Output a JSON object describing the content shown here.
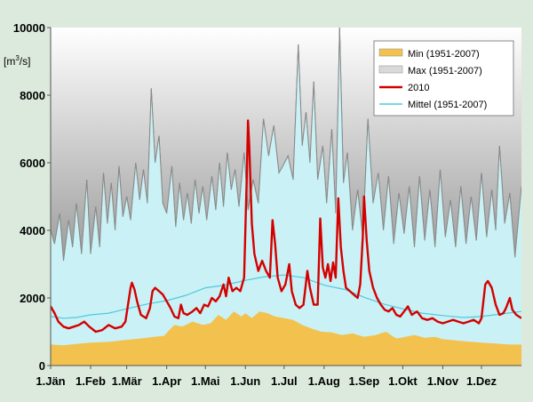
{
  "chart_data": {
    "type": "area",
    "ylabel_main": "[m",
    "ylabel_sup": "3",
    "ylabel_tail": "/s]",
    "ylim": [
      0,
      10000
    ],
    "yticks": [
      0,
      2000,
      4000,
      6000,
      8000,
      10000
    ],
    "xlim": [
      0,
      365
    ],
    "grid": false,
    "legend_position": "top-right",
    "months": [
      {
        "label": "1.Jän",
        "day": 0
      },
      {
        "label": "1.Feb",
        "day": 31
      },
      {
        "label": "1.Mär",
        "day": 59
      },
      {
        "label": "1.Apr",
        "day": 90
      },
      {
        "label": "1.Mai",
        "day": 120
      },
      {
        "label": "1.Jun",
        "day": 151
      },
      {
        "label": "1.Jul",
        "day": 181
      },
      {
        "label": "1.Aug",
        "day": 212
      },
      {
        "label": "1.Sep",
        "day": 243
      },
      {
        "label": "1.Okt",
        "day": 273
      },
      {
        "label": "1.Nov",
        "day": 304
      },
      {
        "label": "1.Dez",
        "day": 334
      }
    ],
    "series": [
      {
        "name": "Max (1951-2007)",
        "kind": "area",
        "color": "#d9d9d9",
        "points": [
          [
            0,
            4000
          ],
          [
            3,
            3600
          ],
          [
            7,
            4500
          ],
          [
            10,
            3100
          ],
          [
            14,
            4300
          ],
          [
            17,
            3500
          ],
          [
            20,
            4800
          ],
          [
            24,
            3300
          ],
          [
            28,
            5500
          ],
          [
            31,
            3300
          ],
          [
            35,
            4700
          ],
          [
            38,
            3500
          ],
          [
            41,
            5700
          ],
          [
            44,
            4200
          ],
          [
            47,
            5400
          ],
          [
            50,
            4000
          ],
          [
            53,
            5900
          ],
          [
            56,
            4400
          ],
          [
            59,
            5000
          ],
          [
            62,
            4300
          ],
          [
            66,
            6000
          ],
          [
            69,
            4900
          ],
          [
            72,
            5800
          ],
          [
            75,
            4800
          ],
          [
            78,
            8200
          ],
          [
            81,
            6000
          ],
          [
            84,
            6800
          ],
          [
            87,
            4800
          ],
          [
            90,
            4500
          ],
          [
            94,
            5900
          ],
          [
            97,
            4100
          ],
          [
            100,
            5400
          ],
          [
            103,
            4300
          ],
          [
            106,
            5100
          ],
          [
            109,
            4200
          ],
          [
            112,
            5500
          ],
          [
            115,
            4500
          ],
          [
            118,
            5300
          ],
          [
            121,
            4300
          ],
          [
            125,
            5600
          ],
          [
            128,
            4600
          ],
          [
            131,
            6000
          ],
          [
            134,
            4700
          ],
          [
            137,
            6300
          ],
          [
            140,
            5200
          ],
          [
            143,
            5800
          ],
          [
            146,
            4700
          ],
          [
            150,
            6300
          ],
          [
            153,
            4600
          ],
          [
            157,
            5500
          ],
          [
            161,
            4800
          ],
          [
            165,
            7300
          ],
          [
            169,
            6200
          ],
          [
            173,
            7100
          ],
          [
            177,
            5700
          ],
          [
            180,
            5900
          ],
          [
            184,
            6200
          ],
          [
            188,
            5500
          ],
          [
            192,
            9500
          ],
          [
            195,
            6500
          ],
          [
            198,
            7500
          ],
          [
            201,
            6000
          ],
          [
            204,
            8400
          ],
          [
            207,
            5500
          ],
          [
            211,
            6500
          ],
          [
            214,
            4800
          ],
          [
            218,
            7000
          ],
          [
            221,
            4500
          ],
          [
            224,
            10000
          ],
          [
            227,
            5400
          ],
          [
            230,
            6300
          ],
          [
            234,
            4000
          ],
          [
            238,
            5200
          ],
          [
            242,
            3800
          ],
          [
            246,
            7300
          ],
          [
            250,
            4800
          ],
          [
            254,
            5700
          ],
          [
            258,
            4000
          ],
          [
            262,
            5600
          ],
          [
            266,
            3600
          ],
          [
            270,
            5100
          ],
          [
            274,
            3900
          ],
          [
            278,
            5300
          ],
          [
            282,
            3500
          ],
          [
            286,
            5600
          ],
          [
            290,
            3700
          ],
          [
            294,
            5200
          ],
          [
            298,
            3500
          ],
          [
            302,
            5800
          ],
          [
            306,
            3800
          ],
          [
            310,
            4900
          ],
          [
            314,
            3500
          ],
          [
            318,
            5300
          ],
          [
            322,
            3600
          ],
          [
            326,
            5000
          ],
          [
            330,
            3700
          ],
          [
            334,
            5700
          ],
          [
            338,
            3800
          ],
          [
            342,
            5200
          ],
          [
            345,
            4000
          ],
          [
            348,
            6500
          ],
          [
            352,
            4200
          ],
          [
            356,
            5100
          ],
          [
            360,
            3200
          ],
          [
            365,
            5300
          ]
        ]
      },
      {
        "name": "Mittel (1951-2007)",
        "kind": "line",
        "color": "#4fc9df",
        "points": [
          [
            0,
            1450
          ],
          [
            10,
            1400
          ],
          [
            20,
            1420
          ],
          [
            31,
            1500
          ],
          [
            45,
            1550
          ],
          [
            59,
            1680
          ],
          [
            75,
            1820
          ],
          [
            90,
            1920
          ],
          [
            105,
            2080
          ],
          [
            120,
            2300
          ],
          [
            135,
            2380
          ],
          [
            151,
            2520
          ],
          [
            165,
            2620
          ],
          [
            181,
            2680
          ],
          [
            196,
            2600
          ],
          [
            212,
            2380
          ],
          [
            228,
            2250
          ],
          [
            243,
            2020
          ],
          [
            258,
            1820
          ],
          [
            273,
            1680
          ],
          [
            288,
            1550
          ],
          [
            304,
            1480
          ],
          [
            320,
            1420
          ],
          [
            334,
            1450
          ],
          [
            350,
            1530
          ],
          [
            365,
            1600
          ]
        ]
      },
      {
        "name": "Min (1951-2007)",
        "kind": "area",
        "color": "#f2c14e",
        "points": [
          [
            0,
            620
          ],
          [
            10,
            600
          ],
          [
            20,
            640
          ],
          [
            31,
            680
          ],
          [
            45,
            700
          ],
          [
            59,
            760
          ],
          [
            70,
            800
          ],
          [
            80,
            850
          ],
          [
            88,
            880
          ],
          [
            92,
            1050
          ],
          [
            96,
            1200
          ],
          [
            102,
            1150
          ],
          [
            110,
            1300
          ],
          [
            118,
            1200
          ],
          [
            124,
            1250
          ],
          [
            130,
            1500
          ],
          [
            136,
            1350
          ],
          [
            142,
            1600
          ],
          [
            148,
            1450
          ],
          [
            151,
            1550
          ],
          [
            156,
            1400
          ],
          [
            162,
            1600
          ],
          [
            168,
            1550
          ],
          [
            174,
            1450
          ],
          [
            181,
            1400
          ],
          [
            188,
            1350
          ],
          [
            195,
            1200
          ],
          [
            202,
            1100
          ],
          [
            210,
            1000
          ],
          [
            218,
            980
          ],
          [
            226,
            900
          ],
          [
            234,
            950
          ],
          [
            243,
            850
          ],
          [
            252,
            900
          ],
          [
            260,
            1000
          ],
          [
            268,
            800
          ],
          [
            275,
            850
          ],
          [
            282,
            900
          ],
          [
            290,
            820
          ],
          [
            298,
            850
          ],
          [
            304,
            780
          ],
          [
            312,
            750
          ],
          [
            320,
            720
          ],
          [
            334,
            680
          ],
          [
            345,
            650
          ],
          [
            355,
            620
          ],
          [
            365,
            620
          ]
        ]
      },
      {
        "name": "2010",
        "kind": "line",
        "color": "#d40000",
        "points": [
          [
            0,
            1750
          ],
          [
            3,
            1550
          ],
          [
            6,
            1300
          ],
          [
            10,
            1150
          ],
          [
            14,
            1100
          ],
          [
            18,
            1150
          ],
          [
            22,
            1200
          ],
          [
            26,
            1300
          ],
          [
            30,
            1150
          ],
          [
            35,
            1000
          ],
          [
            40,
            1050
          ],
          [
            45,
            1200
          ],
          [
            50,
            1100
          ],
          [
            55,
            1150
          ],
          [
            58,
            1300
          ],
          [
            60,
            1800
          ],
          [
            62,
            2300
          ],
          [
            63,
            2450
          ],
          [
            65,
            2250
          ],
          [
            67,
            1900
          ],
          [
            70,
            1500
          ],
          [
            74,
            1400
          ],
          [
            77,
            1700
          ],
          [
            79,
            2200
          ],
          [
            81,
            2300
          ],
          [
            84,
            2200
          ],
          [
            87,
            2100
          ],
          [
            90,
            1900
          ],
          [
            93,
            1700
          ],
          [
            96,
            1450
          ],
          [
            99,
            1400
          ],
          [
            101,
            1800
          ],
          [
            103,
            1550
          ],
          [
            106,
            1500
          ],
          [
            110,
            1600
          ],
          [
            113,
            1700
          ],
          [
            116,
            1550
          ],
          [
            119,
            1800
          ],
          [
            122,
            1750
          ],
          [
            125,
            2000
          ],
          [
            128,
            1900
          ],
          [
            131,
            2050
          ],
          [
            134,
            2400
          ],
          [
            136,
            2050
          ],
          [
            138,
            2600
          ],
          [
            141,
            2200
          ],
          [
            144,
            2300
          ],
          [
            147,
            2200
          ],
          [
            150,
            2600
          ],
          [
            152,
            5500
          ],
          [
            153,
            7250
          ],
          [
            154,
            6500
          ],
          [
            156,
            4200
          ],
          [
            158,
            3300
          ],
          [
            161,
            2800
          ],
          [
            164,
            3100
          ],
          [
            167,
            2800
          ],
          [
            170,
            2600
          ],
          [
            172,
            4300
          ],
          [
            174,
            3600
          ],
          [
            176,
            2600
          ],
          [
            179,
            2200
          ],
          [
            182,
            2400
          ],
          [
            185,
            3000
          ],
          [
            187,
            2200
          ],
          [
            190,
            1800
          ],
          [
            193,
            1700
          ],
          [
            196,
            1800
          ],
          [
            199,
            2800
          ],
          [
            201,
            2300
          ],
          [
            204,
            1800
          ],
          [
            207,
            1800
          ],
          [
            209,
            4350
          ],
          [
            211,
            2900
          ],
          [
            213,
            2600
          ],
          [
            215,
            3000
          ],
          [
            217,
            2500
          ],
          [
            219,
            3050
          ],
          [
            221,
            2600
          ],
          [
            223,
            4950
          ],
          [
            225,
            3500
          ],
          [
            227,
            2800
          ],
          [
            229,
            2300
          ],
          [
            232,
            2200
          ],
          [
            235,
            2100
          ],
          [
            238,
            2000
          ],
          [
            240,
            2400
          ],
          [
            242,
            3800
          ],
          [
            243,
            5000
          ],
          [
            245,
            3700
          ],
          [
            247,
            2800
          ],
          [
            250,
            2300
          ],
          [
            253,
            2000
          ],
          [
            256,
            1800
          ],
          [
            259,
            1650
          ],
          [
            262,
            1600
          ],
          [
            265,
            1700
          ],
          [
            268,
            1500
          ],
          [
            271,
            1450
          ],
          [
            274,
            1600
          ],
          [
            277,
            1750
          ],
          [
            280,
            1500
          ],
          [
            284,
            1600
          ],
          [
            288,
            1400
          ],
          [
            292,
            1350
          ],
          [
            296,
            1400
          ],
          [
            300,
            1300
          ],
          [
            304,
            1250
          ],
          [
            308,
            1300
          ],
          [
            312,
            1350
          ],
          [
            316,
            1300
          ],
          [
            320,
            1250
          ],
          [
            324,
            1300
          ],
          [
            328,
            1350
          ],
          [
            332,
            1250
          ],
          [
            334,
            1400
          ],
          [
            337,
            2400
          ],
          [
            339,
            2500
          ],
          [
            342,
            2300
          ],
          [
            345,
            1800
          ],
          [
            348,
            1500
          ],
          [
            351,
            1550
          ],
          [
            353,
            1700
          ],
          [
            356,
            2000
          ],
          [
            358,
            1650
          ],
          [
            361,
            1500
          ],
          [
            365,
            1400
          ]
        ]
      }
    ],
    "legend": [
      {
        "label": "Min (1951-2007)",
        "swatch": "area",
        "color": "#f2c14e"
      },
      {
        "label": "Max (1951-2007)",
        "swatch": "area",
        "color": "#d9d9d9"
      },
      {
        "label": "2010",
        "swatch": "line",
        "color": "#d40000"
      },
      {
        "label": "Mittel (1951-2007)",
        "swatch": "line",
        "color": "#4fc9df"
      }
    ]
  }
}
